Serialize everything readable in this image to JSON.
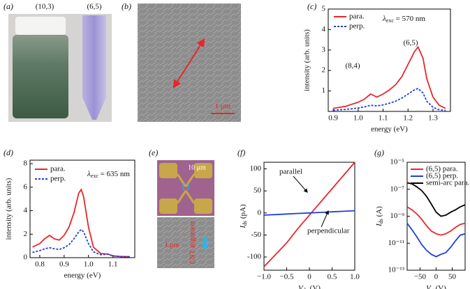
{
  "panels": {
    "a": {
      "label": "(a)",
      "samples": [
        "(10,3)",
        "(6,5)"
      ]
    },
    "b": {
      "label": "(b)",
      "scale_bar": "1 μm"
    },
    "e": {
      "label": "(e)",
      "scale_bar_top": "10 μm",
      "scale_bar_bottom": "1 μm",
      "annotation": "CNT alignment"
    }
  },
  "chart_data": [
    {
      "type": "line",
      "panel_label": "(c)",
      "xlabel": "energy (eV)",
      "ylabel": "intensity (arb. units)",
      "x": [
        0.9,
        0.925,
        0.95,
        0.975,
        1.0,
        1.025,
        1.05,
        1.075,
        1.1,
        1.125,
        1.15,
        1.175,
        1.2,
        1.225,
        1.24,
        1.26,
        1.275,
        1.3,
        1.325,
        1.35
      ],
      "series": [
        {
          "name": "para.",
          "color": "#e8262b",
          "dash": false,
          "values": [
            0.15,
            0.2,
            0.25,
            0.35,
            0.45,
            0.6,
            0.85,
            0.7,
            0.85,
            1.05,
            1.3,
            1.7,
            2.3,
            2.9,
            3.15,
            2.6,
            1.6,
            0.7,
            0.3,
            0.15
          ]
        },
        {
          "name": "perp.",
          "color": "#1f3fd6",
          "dash": true,
          "values": [
            0.05,
            0.08,
            0.1,
            0.13,
            0.17,
            0.22,
            0.3,
            0.27,
            0.32,
            0.4,
            0.5,
            0.65,
            0.85,
            1.05,
            1.12,
            0.9,
            0.5,
            0.2,
            0.08,
            0.05
          ]
        }
      ],
      "xlim": [
        0.88,
        1.37
      ],
      "xticks": [
        0.9,
        {
          "value": 1,
          "label": "1.0"
        },
        1.1,
        1.2,
        1.3
      ],
      "ylim": [
        0,
        5
      ],
      "yticks": [
        1,
        2,
        3,
        4,
        5
      ],
      "legend": "upper left",
      "annotations": [
        "(8,4)",
        "(6,5)"
      ],
      "excitation": {
        "symbol": "λ",
        "sub": "exc",
        "text": " = 570 nm"
      }
    },
    {
      "type": "line",
      "panel_label": "(d)",
      "xlabel": "energy (eV)",
      "ylabel": "intensity (arb. units)",
      "x": [
        0.77,
        0.8,
        0.82,
        0.84,
        0.86,
        0.88,
        0.9,
        0.92,
        0.94,
        0.96,
        0.97,
        0.98,
        1.0,
        1.02,
        1.05,
        1.08,
        1.1,
        1.13,
        1.17
      ],
      "series": [
        {
          "name": "para.",
          "color": "#e8262b",
          "dash": false,
          "values": [
            0.9,
            1.2,
            1.6,
            1.9,
            1.6,
            1.5,
            1.9,
            2.6,
            3.8,
            5.5,
            5.8,
            5.2,
            2.6,
            0.9,
            0.35,
            0.3,
            0.15,
            0.1,
            0.08
          ]
        },
        {
          "name": "perp.",
          "color": "#1f3fd6",
          "dash": true,
          "values": [
            0.45,
            0.6,
            0.75,
            0.85,
            0.75,
            0.7,
            0.85,
            1.1,
            1.6,
            2.2,
            2.4,
            2.2,
            1.2,
            0.5,
            0.25,
            0.3,
            0.15,
            0.1,
            0.08
          ]
        }
      ],
      "xlim": [
        0.76,
        1.19
      ],
      "xticks": [
        0.8,
        0.9,
        {
          "value": 1,
          "label": "1.0"
        },
        1.1
      ],
      "ylim": [
        0,
        8.3
      ],
      "yticks": [
        0,
        2,
        4,
        6,
        8
      ],
      "legend": "upper left",
      "excitation": {
        "symbol": "λ",
        "sub": "exc",
        "text": " = 635 nm"
      }
    },
    {
      "type": "line",
      "panel_label": "(f)",
      "xlabel": {
        "symbol": "V",
        "sub": "ds",
        "unit": " (V)"
      },
      "ylabel": {
        "symbol": "I",
        "sub": "ds",
        "unit": " (pA)"
      },
      "x": [
        -1,
        -0.75,
        -0.5,
        -0.25,
        0,
        0.25,
        0.5,
        0.75,
        1
      ],
      "series": [
        {
          "name": "parallel",
          "color": "#e8262b",
          "dash": false,
          "values": [
            -122,
            -95,
            -68,
            -35,
            -5,
            25,
            55,
            85,
            115
          ]
        },
        {
          "name": "perpendicular",
          "color": "#1f3fd6",
          "dash": false,
          "values": [
            -5,
            -3.8,
            -2.5,
            -1.2,
            0,
            1.2,
            2.5,
            3.8,
            5
          ]
        }
      ],
      "xlim": [
        -1,
        1
      ],
      "xticks": [
        {
          "value": -1,
          "label": "−1.0"
        },
        {
          "value": -0.5,
          "label": "−0.5"
        },
        0,
        0.5,
        {
          "value": 1,
          "label": "1.0"
        }
      ],
      "ylim": [
        -130,
        115
      ],
      "yticks": [
        -100,
        -50,
        0,
        50,
        100
      ]
    },
    {
      "type": "line",
      "panel_label": "(g)",
      "log_y": true,
      "xlabel": {
        "symbol": "V",
        "sub": "g",
        "unit": " (V)"
      },
      "ylabel": {
        "symbol": "I",
        "sub": "ds",
        "unit": " (A)"
      },
      "x": [
        -90,
        -75,
        -60,
        -45,
        -30,
        -15,
        0,
        15,
        30,
        45,
        60,
        75,
        90
      ],
      "series": [
        {
          "name": "(6,5) para.",
          "color": "#e8262b",
          "dash": false,
          "values": [
            5e-09,
            3e-09,
            1.5e-09,
            6e-10,
            2e-10,
            8e-11,
            5e-11,
            4e-11,
            5e-11,
            8e-11,
            1.5e-10,
            2.5e-10,
            3e-10
          ]
        },
        {
          "name": "(6,5) perp.",
          "color": "#1f3fd6",
          "dash": false,
          "values": [
            3e-10,
            1e-10,
            3e-11,
            8e-12,
            3e-12,
            1.5e-12,
            1e-12,
            1.5e-12,
            2e-12,
            5e-12,
            1.5e-11,
            4e-11,
            5e-11
          ]
        },
        {
          "name": "semi-arc para.",
          "color": "#000000",
          "dash": false,
          "values": [
            3e-07,
            2.5e-07,
            1.5e-07,
            8e-08,
            3e-08,
            8e-09,
            2e-09,
            1e-09,
            1.2e-09,
            2e-09,
            3e-09,
            5e-09,
            7e-09
          ]
        }
      ],
      "xlim": [
        -90,
        90
      ],
      "xticks": [
        {
          "value": -50,
          "label": "−50"
        },
        0,
        50
      ],
      "ylim": [
        1e-13,
        1e-05
      ],
      "yticks": [
        {
          "value": 1e-13,
          "label": "10⁻¹³"
        },
        {
          "value": 1e-11,
          "label": "10⁻¹¹"
        },
        {
          "value": 1e-09,
          "label": "10⁻⁹"
        },
        {
          "value": 1e-07,
          "label": "10⁻⁷"
        },
        {
          "value": 1e-05,
          "label": "10⁻⁵"
        }
      ],
      "legend": "upper left"
    }
  ]
}
